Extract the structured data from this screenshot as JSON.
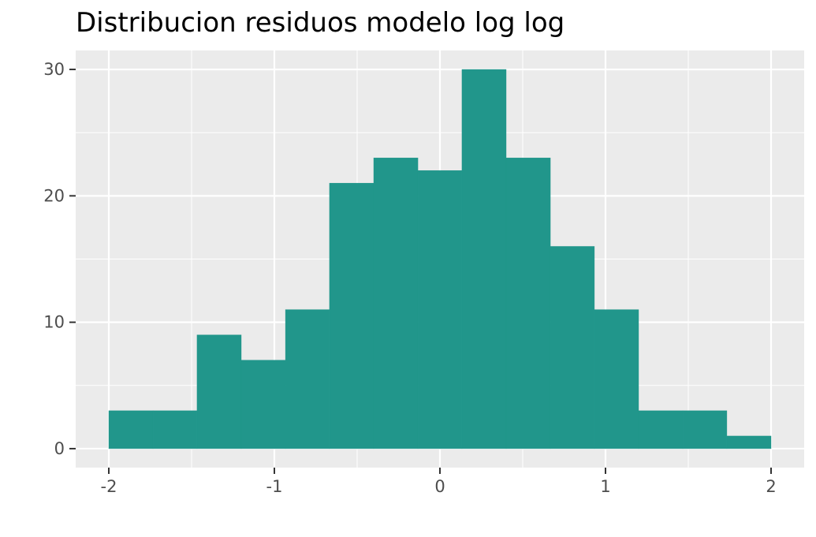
{
  "chart_data": {
    "type": "bar",
    "title": "Distribucion residuos modelo log log",
    "xlabel": "",
    "ylabel": "",
    "bin_edges": [
      -2.0,
      -1.733,
      -1.467,
      -1.2,
      -0.933,
      -0.667,
      -0.4,
      -0.133,
      0.133,
      0.4,
      0.667,
      0.933,
      1.2,
      1.467,
      1.733,
      2.0
    ],
    "values": [
      3,
      3,
      9,
      7,
      11,
      21,
      23,
      22,
      30,
      23,
      16,
      11,
      3,
      3,
      1
    ],
    "xlim": [
      -2.2,
      2.2
    ],
    "ylim": [
      -1.5,
      31.5
    ],
    "x_ticks": [
      -2,
      -1,
      0,
      1,
      2
    ],
    "x_tick_labels": [
      "-2",
      "-1",
      "0",
      "1",
      "2"
    ],
    "y_ticks": [
      0,
      10,
      20,
      30
    ],
    "y_tick_labels": [
      "0",
      "10",
      "20",
      "30"
    ],
    "grid": true,
    "fill_color": "#21968b",
    "panel_color": "#ebebeb",
    "grid_color": "#ffffff"
  }
}
